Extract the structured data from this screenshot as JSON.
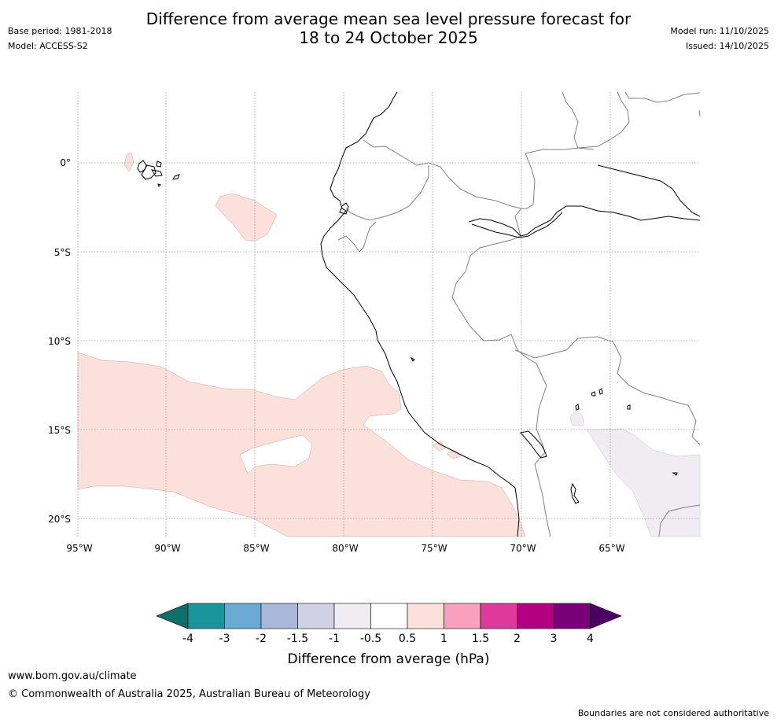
{
  "header": {
    "title_line1": "Difference from average mean sea level pressure forecast for",
    "title_line2": "18 to 24 October 2025",
    "base_period": "Base period: 1981-2018",
    "model": "Model: ACCESS-S2",
    "model_run": "Model run: 11/10/2025",
    "issued": "Issued: 14/10/2025"
  },
  "map": {
    "lat_labels": [
      "0°",
      "5°S",
      "10°S",
      "15°S",
      "20°S"
    ],
    "lon_labels": [
      "95°W",
      "90°W",
      "85°W",
      "80°W",
      "75°W",
      "70°W",
      "65°W"
    ],
    "colors": {
      "positive_0_5_to_1": "#fce0dc",
      "negative_0_5_to_1": "#f0ecf2",
      "coastline": "#000000",
      "border": "#808080",
      "gridline": "#999999"
    }
  },
  "legend": {
    "title": "Difference from average (hPa)",
    "ticks": [
      "-4",
      "-3",
      "-2",
      "-1.5",
      "-1",
      "-0.5",
      "0.5",
      "1",
      "1.5",
      "2",
      "3",
      "4"
    ],
    "colors": [
      "#0d7068",
      "#1a959e",
      "#6aaad3",
      "#a9b7d9",
      "#d1d1e6",
      "#f0ecf2",
      "#ffffff",
      "#fce0dc",
      "#f8a0bd",
      "#de3a9b",
      "#b30080",
      "#7a007a",
      "#4b0063"
    ]
  },
  "footer": {
    "url": "www.bom.gov.au/climate",
    "copyright": "© Commonwealth of Australia 2025, Australian Bureau of Meteorology",
    "note": "Boundaries are not considered authoritative"
  }
}
